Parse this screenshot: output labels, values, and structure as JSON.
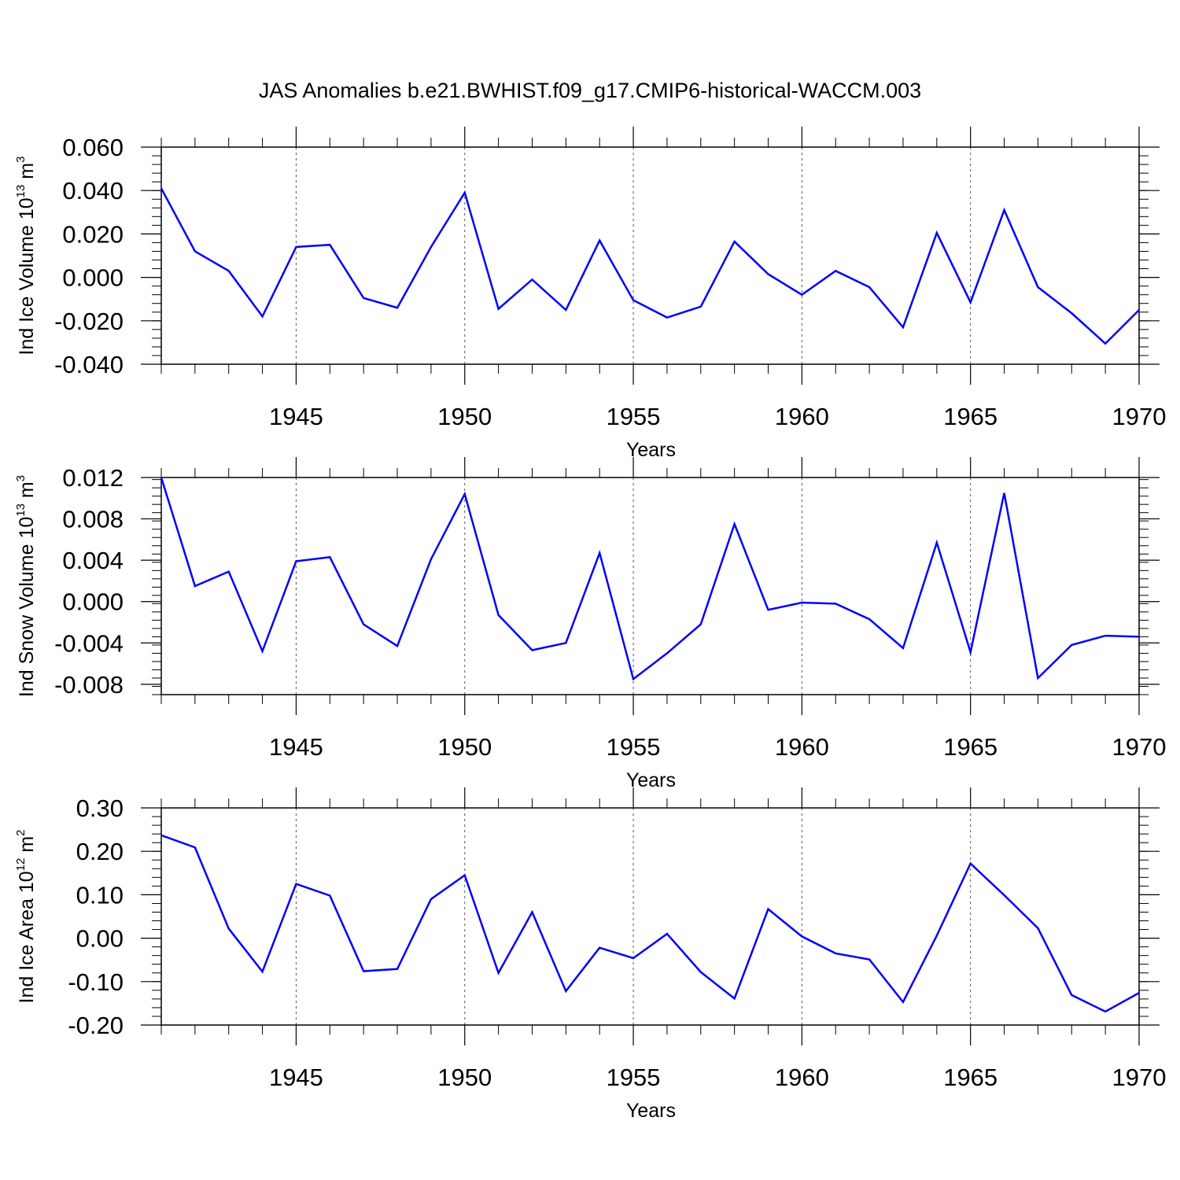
{
  "title": "JAS Anomalies b.e21.BWHIST.f09_g17.CMIP6-historical-WACCM.003",
  "chart_data": [
    {
      "type": "line",
      "ylabel": {
        "base": "Ind Ice Volume 10",
        "exp": "13",
        "unit": " m",
        "unit_exp": "3"
      },
      "xlabel": "Years",
      "xlim": [
        1941,
        1970
      ],
      "ylim": [
        -0.04,
        0.06
      ],
      "x_ticks": [
        1945,
        1950,
        1955,
        1960,
        1965,
        1970
      ],
      "y_ticks": [
        -0.04,
        -0.02,
        0.0,
        0.02,
        0.04,
        0.06
      ],
      "y_tick_labels": [
        "-0.040",
        "-0.020",
        "0.000",
        "0.020",
        "0.040",
        "0.060"
      ],
      "x": [
        1941,
        1942,
        1943,
        1944,
        1945,
        1946,
        1947,
        1948,
        1949,
        1950,
        1951,
        1952,
        1953,
        1954,
        1955,
        1956,
        1957,
        1958,
        1959,
        1960,
        1961,
        1962,
        1963,
        1964,
        1965,
        1966,
        1967,
        1968,
        1969,
        1970
      ],
      "series": [
        {
          "values": [
            0.041,
            0.012,
            0.003,
            -0.018,
            0.014,
            0.015,
            -0.0095,
            -0.014,
            0.014,
            0.039,
            -0.0145,
            -0.001,
            -0.015,
            0.017,
            -0.0105,
            -0.0185,
            -0.0135,
            0.0165,
            0.0015,
            -0.008,
            0.003,
            -0.0045,
            -0.023,
            0.0205,
            -0.0115,
            0.031,
            -0.0045,
            -0.0165,
            -0.0305,
            -0.015
          ],
          "color": "#0000ff"
        }
      ],
      "vgrid": [
        1945,
        1950,
        1955,
        1960,
        1965
      ]
    },
    {
      "type": "line",
      "ylabel": {
        "base": "Ind Snow Volume 10",
        "exp": "13",
        "unit": " m",
        "unit_exp": "3"
      },
      "xlabel": "Years",
      "xlim": [
        1941,
        1970
      ],
      "ylim": [
        -0.009,
        0.012
      ],
      "x_ticks": [
        1945,
        1950,
        1955,
        1960,
        1965,
        1970
      ],
      "y_ticks": [
        -0.008,
        -0.004,
        0.0,
        0.004,
        0.008,
        0.012
      ],
      "y_tick_labels": [
        "-0.008",
        "-0.004",
        "0.000",
        "0.004",
        "0.008",
        "0.012"
      ],
      "x": [
        1941,
        1942,
        1943,
        1944,
        1945,
        1946,
        1947,
        1948,
        1949,
        1950,
        1951,
        1952,
        1953,
        1954,
        1955,
        1956,
        1957,
        1958,
        1959,
        1960,
        1961,
        1962,
        1963,
        1964,
        1965,
        1966,
        1967,
        1968,
        1969,
        1970
      ],
      "series": [
        {
          "values": [
            0.012,
            0.0015,
            0.0029,
            -0.0048,
            0.0039,
            0.0043,
            -0.0022,
            -0.0043,
            0.0041,
            0.0104,
            -0.0013,
            -0.0047,
            -0.004,
            0.0047,
            -0.0075,
            -0.005,
            -0.0022,
            0.0075,
            -0.0008,
            -0.0001,
            -0.0002,
            -0.0017,
            -0.0045,
            0.0057,
            -0.0049,
            0.0105,
            -0.0074,
            -0.0042,
            -0.0033,
            -0.0034
          ],
          "color": "#0000ff"
        }
      ],
      "vgrid": [
        1945,
        1950,
        1955,
        1960,
        1965
      ]
    },
    {
      "type": "line",
      "ylabel": {
        "base": "Ind Ice Area 10",
        "exp": "12",
        "unit": " m",
        "unit_exp": "2"
      },
      "xlabel": "Years",
      "xlim": [
        1941,
        1970
      ],
      "ylim": [
        -0.2,
        0.3
      ],
      "x_ticks": [
        1945,
        1950,
        1955,
        1960,
        1965,
        1970
      ],
      "y_ticks": [
        -0.2,
        -0.1,
        0.0,
        0.1,
        0.2,
        0.3
      ],
      "y_tick_labels": [
        "-0.20",
        "-0.10",
        "0.00",
        "0.10",
        "0.20",
        "0.30"
      ],
      "x": [
        1941,
        1942,
        1943,
        1944,
        1945,
        1946,
        1947,
        1948,
        1949,
        1950,
        1951,
        1952,
        1953,
        1954,
        1955,
        1956,
        1957,
        1958,
        1959,
        1960,
        1961,
        1962,
        1963,
        1964,
        1965,
        1966,
        1967,
        1968,
        1969,
        1970
      ],
      "series": [
        {
          "values": [
            0.237,
            0.209,
            0.022,
            -0.077,
            0.125,
            0.098,
            -0.076,
            -0.071,
            0.09,
            0.145,
            -0.08,
            0.06,
            -0.122,
            -0.022,
            -0.046,
            0.01,
            -0.078,
            -0.139,
            0.067,
            0.004,
            -0.035,
            -0.049,
            -0.147,
            0.006,
            0.172,
            0.099,
            0.023,
            -0.131,
            -0.169,
            -0.126
          ],
          "color": "#0000ff"
        }
      ],
      "vgrid": [
        1945,
        1950,
        1955,
        1960,
        1965
      ]
    }
  ]
}
